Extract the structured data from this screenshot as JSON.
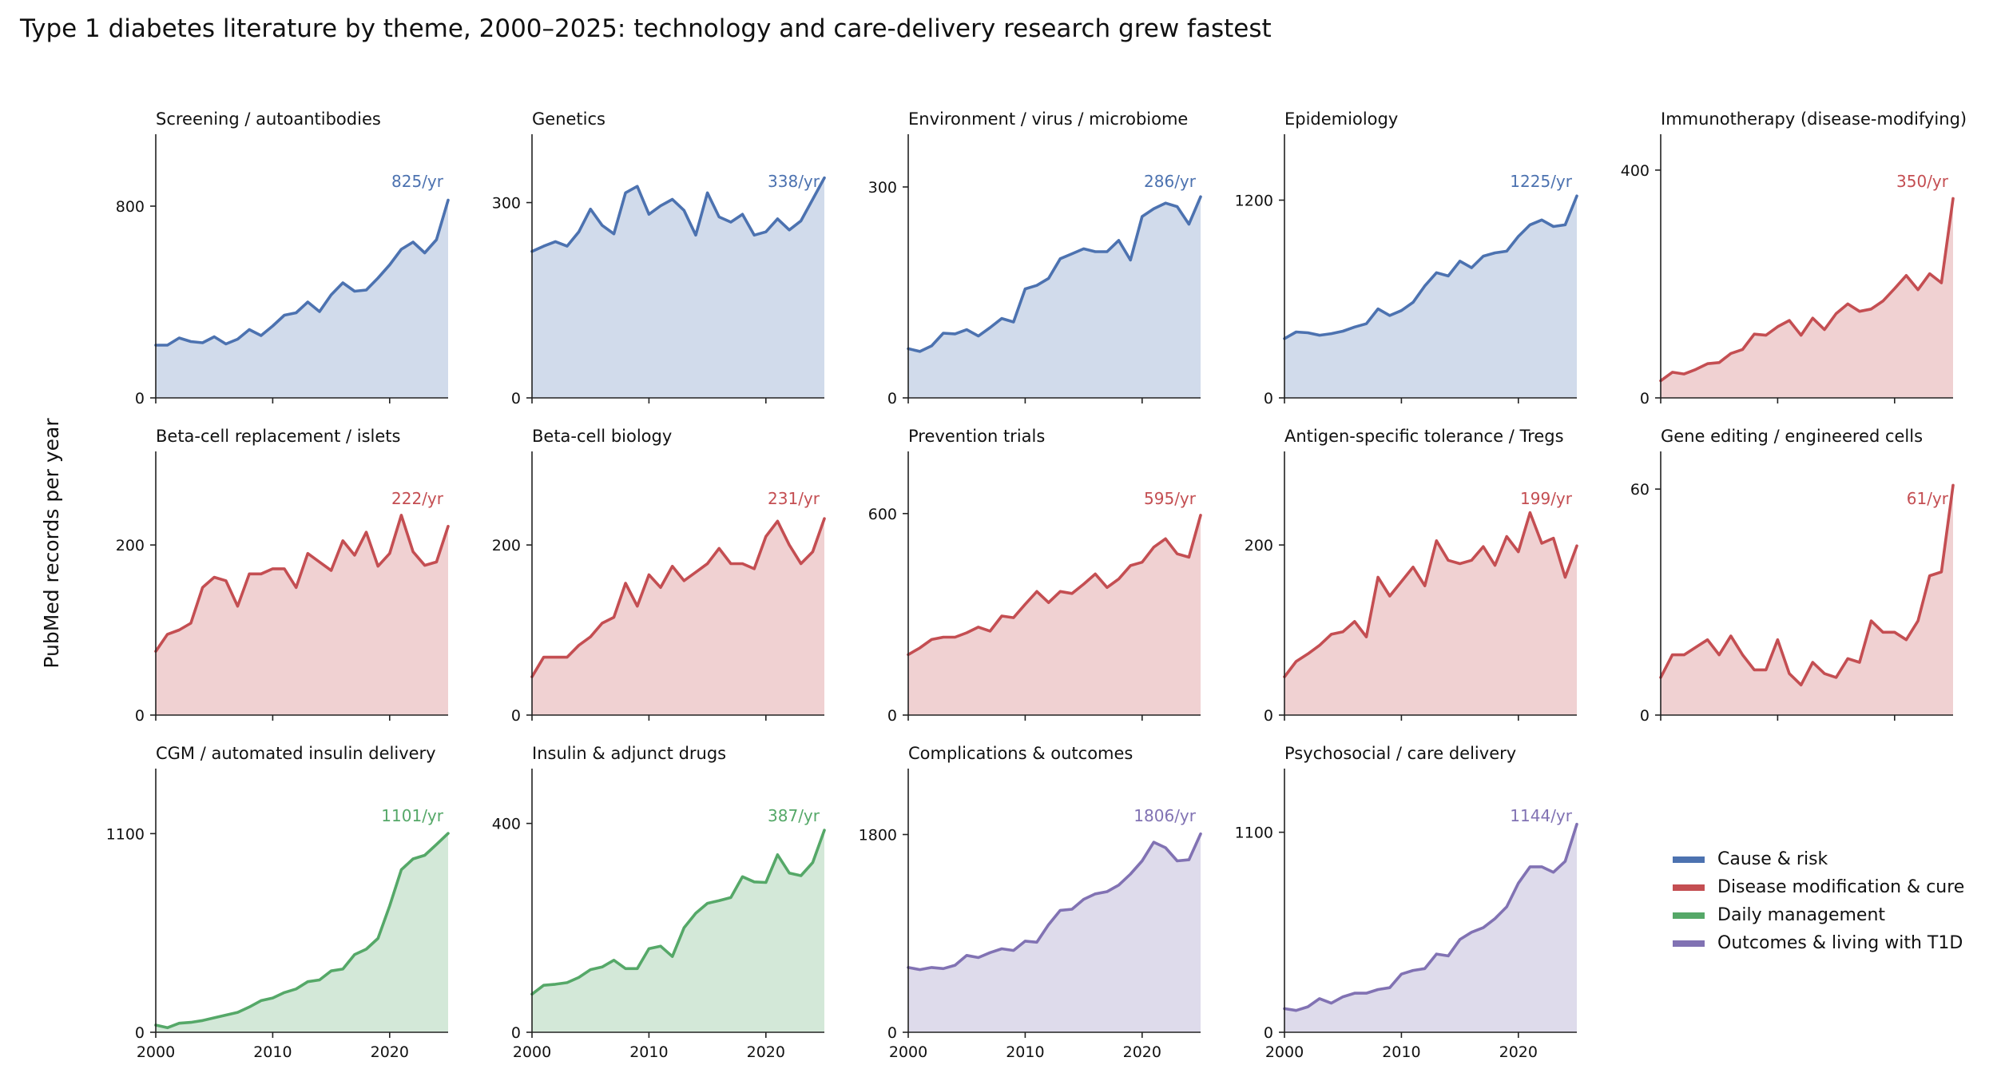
{
  "title": "Type 1 diabetes literature by theme, 2000–2025: technology and care-delivery research grew fastest",
  "ylabel": "PubMed records per year",
  "colors": {
    "cause": "#4c72b0",
    "cure": "#c44e52",
    "daily": "#55a868",
    "outcomes": "#8172b3"
  },
  "legend": [
    {
      "label": "Cause & risk",
      "group": "cause"
    },
    {
      "label": "Disease modification & cure",
      "group": "cure"
    },
    {
      "label": "Daily management",
      "group": "daily"
    },
    {
      "label": "Outcomes & living with T1D",
      "group": "outcomes"
    }
  ],
  "chart_data": {
    "type": "area",
    "x": [
      2000,
      2001,
      2002,
      2003,
      2004,
      2005,
      2006,
      2007,
      2008,
      2009,
      2010,
      2011,
      2012,
      2013,
      2014,
      2015,
      2016,
      2017,
      2018,
      2019,
      2020,
      2021,
      2022,
      2023,
      2024,
      2025
    ],
    "xlim": [
      2000,
      2025
    ],
    "xticks": [
      2000,
      2010,
      2020
    ],
    "panels": [
      {
        "title": "Screening / autoantibodies",
        "group": "cause",
        "annotation": "825/yr",
        "ylim": [
          0,
          1100
        ],
        "yticks": [
          0,
          800
        ],
        "values": [
          220,
          220,
          250,
          235,
          230,
          255,
          225,
          245,
          285,
          260,
          300,
          345,
          355,
          400,
          360,
          430,
          480,
          445,
          450,
          500,
          555,
          620,
          650,
          605,
          660,
          825
        ]
      },
      {
        "title": "Genetics",
        "group": "cause",
        "annotation": "338/yr",
        "ylim": [
          0,
          405
        ],
        "yticks": [
          0,
          300
        ],
        "values": [
          225,
          233,
          240,
          233,
          255,
          290,
          265,
          252,
          315,
          325,
          282,
          295,
          305,
          288,
          250,
          315,
          278,
          270,
          282,
          250,
          255,
          275,
          258,
          272,
          305,
          338
        ]
      },
      {
        "title": "Environment / virus / microbiome",
        "group": "cause",
        "annotation": "286/yr",
        "ylim": [
          0,
          375
        ],
        "yticks": [
          0,
          300
        ],
        "values": [
          70,
          66,
          74,
          92,
          91,
          97,
          88,
          100,
          113,
          108,
          155,
          160,
          170,
          198,
          205,
          212,
          208,
          208,
          224,
          196,
          258,
          269,
          277,
          272,
          247,
          286
        ]
      },
      {
        "title": "Epidemiology",
        "group": "cause",
        "annotation": "1225/yr",
        "ylim": [
          0,
          1600
        ],
        "yticks": [
          0,
          1200
        ],
        "values": [
          360,
          400,
          395,
          380,
          390,
          405,
          430,
          450,
          540,
          500,
          530,
          580,
          680,
          760,
          740,
          830,
          790,
          860,
          880,
          890,
          980,
          1050,
          1080,
          1040,
          1050,
          1225
        ]
      },
      {
        "title": "Immunotherapy (disease-modifying)",
        "group": "cure",
        "annotation": "350/yr",
        "ylim": [
          0,
          463
        ],
        "yticks": [
          0,
          400
        ],
        "values": [
          30,
          45,
          42,
          50,
          60,
          62,
          78,
          85,
          112,
          110,
          125,
          136,
          110,
          140,
          120,
          148,
          165,
          152,
          156,
          170,
          192,
          215,
          190,
          218,
          202,
          350
        ]
      },
      {
        "title": "Beta-cell replacement / islets",
        "group": "cure",
        "annotation": "222/yr",
        "ylim": [
          0,
          310
        ],
        "yticks": [
          0,
          200
        ],
        "values": [
          75,
          95,
          100,
          108,
          150,
          162,
          158,
          128,
          166,
          166,
          172,
          172,
          150,
          190,
          180,
          170,
          205,
          188,
          215,
          175,
          190,
          235,
          192,
          176,
          180,
          222
        ]
      },
      {
        "title": "Beta-cell biology",
        "group": "cure",
        "annotation": "231/yr",
        "ylim": [
          0,
          310
        ],
        "yticks": [
          0,
          200
        ],
        "values": [
          45,
          68,
          68,
          68,
          82,
          92,
          108,
          115,
          155,
          128,
          165,
          150,
          175,
          158,
          168,
          178,
          196,
          178,
          178,
          172,
          210,
          228,
          200,
          178,
          192,
          231
        ]
      },
      {
        "title": "Prevention trials",
        "group": "cure",
        "annotation": "595/yr",
        "ylim": [
          0,
          785
        ],
        "yticks": [
          0,
          600
        ],
        "values": [
          180,
          200,
          225,
          232,
          232,
          245,
          262,
          250,
          295,
          290,
          330,
          368,
          335,
          368,
          362,
          390,
          420,
          380,
          405,
          445,
          455,
          500,
          525,
          480,
          470,
          595
        ]
      },
      {
        "title": "Antigen-specific tolerance / Tregs",
        "group": "cure",
        "annotation": "199/yr",
        "ylim": [
          0,
          310
        ],
        "yticks": [
          0,
          200
        ],
        "values": [
          45,
          63,
          72,
          82,
          95,
          98,
          110,
          92,
          162,
          140,
          157,
          174,
          152,
          205,
          182,
          178,
          182,
          198,
          176,
          210,
          192,
          238,
          202,
          208,
          162,
          199
        ]
      },
      {
        "title": "Gene editing / engineered cells",
        "group": "cure",
        "annotation": "61/yr",
        "ylim": [
          0,
          70
        ],
        "yticks": [
          0,
          60
        ],
        "values": [
          10,
          16,
          16,
          18,
          20,
          16,
          21,
          16,
          12,
          12,
          20,
          11,
          8,
          14,
          11,
          10,
          15,
          14,
          25,
          22,
          22,
          20,
          25,
          37,
          38,
          61
        ]
      },
      {
        "title": "CGM / automated insulin delivery",
        "group": "daily",
        "annotation": "1101/yr",
        "ylim": [
          0,
          1460
        ],
        "yticks": [
          0,
          1100
        ],
        "values": [
          40,
          25,
          50,
          55,
          65,
          80,
          95,
          110,
          140,
          175,
          190,
          220,
          240,
          280,
          290,
          340,
          350,
          430,
          460,
          520,
          700,
          900,
          960,
          980,
          1040,
          1101
        ]
      },
      {
        "title": "Insulin & adjunct drugs",
        "group": "daily",
        "annotation": "387/yr",
        "ylim": [
          0,
          505
        ],
        "yticks": [
          0,
          400
        ],
        "values": [
          73,
          90,
          92,
          95,
          105,
          120,
          125,
          138,
          122,
          122,
          160,
          165,
          145,
          200,
          228,
          247,
          252,
          258,
          298,
          288,
          287,
          340,
          305,
          300,
          325,
          387
        ]
      },
      {
        "title": "Complications & outcomes",
        "group": "outcomes",
        "annotation": "1806/yr",
        "ylim": [
          0,
          2400
        ],
        "yticks": [
          0,
          1800
        ],
        "values": [
          590,
          570,
          590,
          580,
          610,
          700,
          680,
          725,
          760,
          745,
          830,
          820,
          980,
          1110,
          1120,
          1210,
          1260,
          1280,
          1340,
          1440,
          1560,
          1730,
          1680,
          1560,
          1570,
          1806
        ]
      },
      {
        "title": "Psychosocial / care delivery",
        "group": "outcomes",
        "annotation": "1144/yr",
        "ylim": [
          0,
          1450
        ],
        "yticks": [
          0,
          1100
        ],
        "values": [
          130,
          120,
          140,
          185,
          160,
          195,
          215,
          215,
          235,
          245,
          320,
          340,
          350,
          430,
          420,
          510,
          550,
          575,
          625,
          690,
          820,
          910,
          910,
          880,
          940,
          1144
        ]
      }
    ]
  }
}
